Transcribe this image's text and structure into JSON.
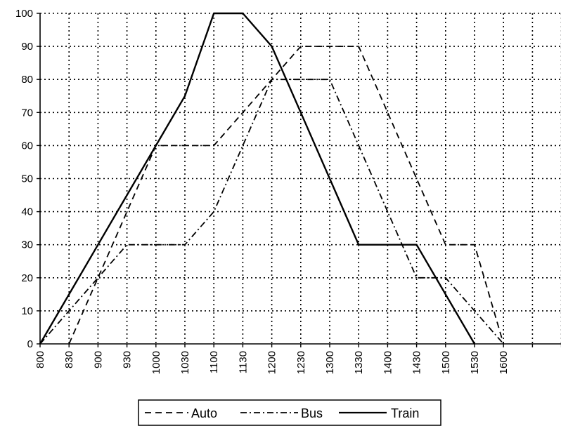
{
  "chart_data": {
    "type": "line",
    "x": [
      "800",
      "830",
      "900",
      "930",
      "1000",
      "1030",
      "1100",
      "1130",
      "1200",
      "1230",
      "1300",
      "1330",
      "1400",
      "1430",
      "1500",
      "1530",
      "1600"
    ],
    "ylim": [
      0,
      100
    ],
    "yticks": [
      0,
      10,
      20,
      30,
      40,
      50,
      60,
      70,
      80,
      90,
      100
    ],
    "grid": true,
    "legend_position": "bottom",
    "series": [
      {
        "name": "Auto",
        "dash": "dashed",
        "values": [
          null,
          0,
          20,
          40,
          60,
          60,
          60,
          70,
          80,
          90,
          90,
          90,
          70,
          50,
          30,
          30,
          0
        ]
      },
      {
        "name": "Bus",
        "dash": "dash-dot",
        "values": [
          0,
          10,
          20,
          30,
          30,
          30,
          40,
          60,
          80,
          80,
          80,
          60,
          40,
          20,
          20,
          10,
          0
        ]
      },
      {
        "name": "Train",
        "dash": "solid",
        "values": [
          0,
          15,
          30,
          45,
          60,
          75,
          100,
          100,
          90,
          70,
          50,
          30,
          30,
          30,
          15,
          0,
          null
        ]
      }
    ]
  }
}
